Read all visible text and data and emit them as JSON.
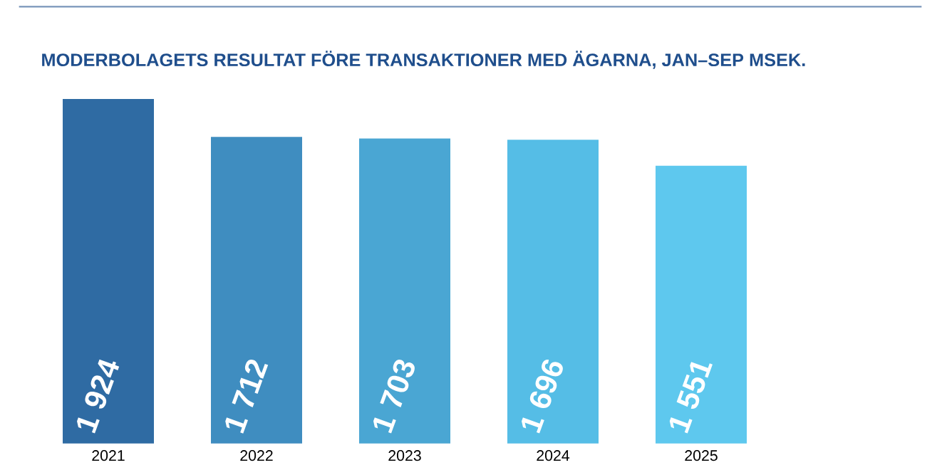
{
  "chart_data": {
    "type": "bar",
    "title": "MODERBOLAGETS RESULTAT FÖRE TRANSAKTIONER MED ÄGARNA, JAN–SEP MSEK.",
    "categories": [
      "2021",
      "2022",
      "2023",
      "2024",
      "2025"
    ],
    "values": [
      1924,
      1712,
      1703,
      1696,
      1551
    ],
    "value_labels": [
      "1 924",
      "1 712",
      "1 703",
      "1 696",
      "1 551"
    ],
    "colors": [
      "#2f6ba3",
      "#3f8dc0",
      "#4aa6d3",
      "#55bde6",
      "#5ec8ee"
    ]
  }
}
